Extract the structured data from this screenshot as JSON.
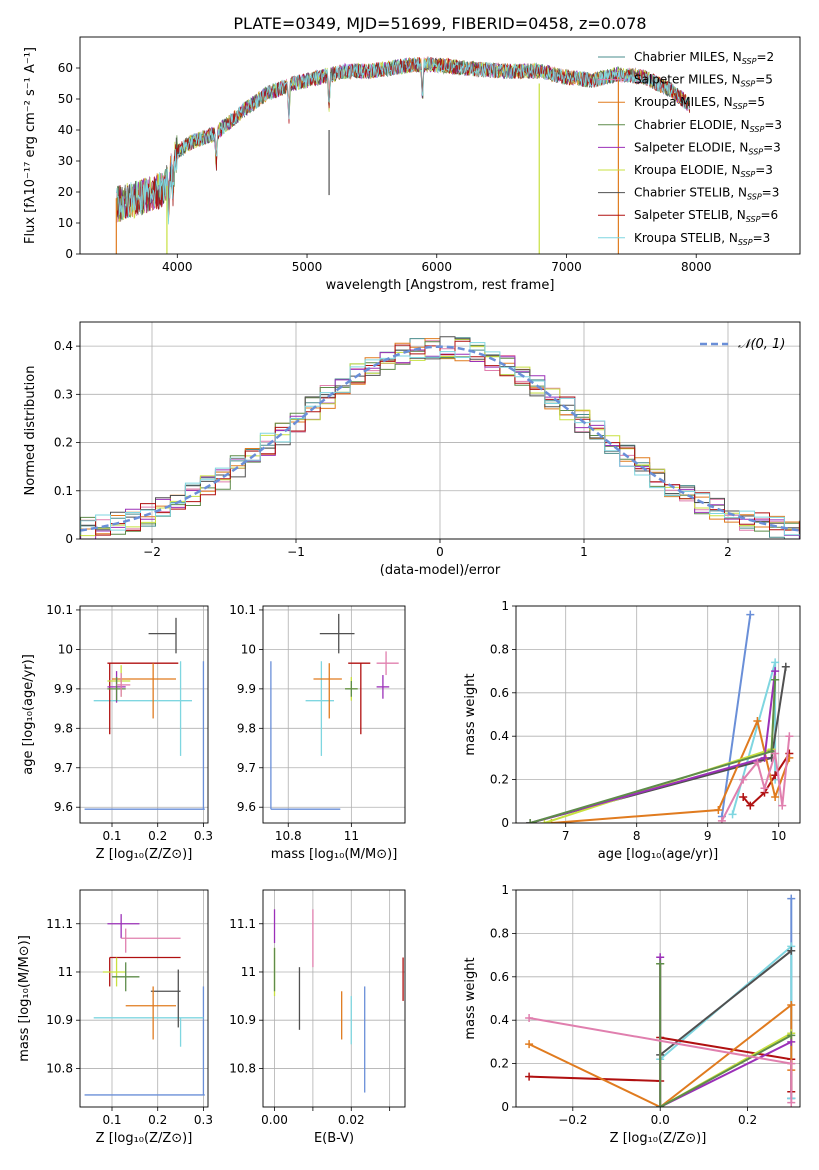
{
  "figure_title": "PLATE=0349, MJD=51699, FIBERID=0458, z=0.078",
  "legend_models": [
    {
      "label": "Chabrier MILES, N",
      "sub": "SSP",
      "tail": "=2",
      "color": "#4a8c8c"
    },
    {
      "label": "Salpeter MILES, N",
      "sub": "SSP",
      "tail": "=5",
      "color": "#e07fae"
    },
    {
      "label": "Kroupa MILES, N",
      "sub": "SSP",
      "tail": "=5",
      "color": "#e07b1f"
    },
    {
      "label": "Chabrier ELODIE, N",
      "sub": "SSP",
      "tail": "=3",
      "color": "#5e8c4a"
    },
    {
      "label": "Salpeter ELODIE, N",
      "sub": "SSP",
      "tail": "=3",
      "color": "#9b30b8"
    },
    {
      "label": "Kroupa ELODIE, N",
      "sub": "SSP",
      "tail": "=3",
      "color": "#c8e040"
    },
    {
      "label": "Chabrier STELIB, N",
      "sub": "SSP",
      "tail": "=3",
      "color": "#505050"
    },
    {
      "label": "Salpeter STELIB, N",
      "sub": "SSP",
      "tail": "=6",
      "color": "#b01010"
    },
    {
      "label": "Kroupa STELIB, N",
      "sub": "SSP",
      "tail": "=3",
      "color": "#7fd6e0"
    }
  ],
  "chart_data": [
    {
      "id": "spectrum",
      "type": "line",
      "xlabel": "wavelength [Angstrom, rest frame]",
      "ylabel": "Flux [fλ10⁻¹⁷ erg cm⁻² s⁻¹ A⁻¹]",
      "xlim": [
        3250,
        8800
      ],
      "ylim": [
        0,
        70
      ],
      "xticks": [
        4000,
        5000,
        6000,
        7000,
        8000
      ],
      "yticks": [
        0,
        10,
        20,
        30,
        40,
        50,
        60
      ],
      "grid": false,
      "continuum_x": [
        3530,
        3700,
        3900,
        4000,
        4100,
        4300,
        4500,
        4700,
        4900,
        5100,
        5300,
        5500,
        5800,
        6000,
        6200,
        6500,
        6800,
        7000,
        7200,
        7400,
        7600,
        7800,
        7950
      ],
      "continuum_y": [
        16,
        18,
        21,
        33,
        36,
        39,
        46,
        52,
        55,
        57,
        59,
        59,
        61,
        61,
        60,
        59,
        59,
        57,
        56,
        58,
        57,
        53,
        48
      ]
    },
    {
      "id": "residuals",
      "type": "histogram",
      "xlabel": "(data-model)/error",
      "ylabel": "Normed distribution",
      "xlim": [
        -2.5,
        2.5
      ],
      "ylim": [
        0,
        0.45
      ],
      "xticks": [
        -2,
        -1,
        0,
        1,
        2
      ],
      "yticks": [
        0.0,
        0.1,
        0.2,
        0.3,
        0.4
      ],
      "grid": true,
      "reference_label": "𝒩(0, 1)",
      "reference_color": "#6a8fd8"
    },
    {
      "id": "age_vs_Z",
      "type": "errorbar",
      "xlabel": "Z [log₁₀(Z/Z⊙)]",
      "ylabel": "age  [log₁₀(age/yr)]",
      "xlim": [
        0.03,
        0.31
      ],
      "ylim": [
        9.56,
        10.11
      ],
      "xticks": [
        0.1,
        0.2,
        0.3
      ],
      "yticks": [
        9.6,
        9.7,
        9.8,
        9.9,
        10.0,
        10.1
      ],
      "grid": true,
      "points": [
        {
          "color": "#6a8fd8",
          "x": 0.3,
          "xerr": [
            0.26,
            0.003
          ],
          "y": 9.595,
          "yerr": [
            0.0,
            0.375
          ]
        },
        {
          "color": "#7fd6e0",
          "x": 0.25,
          "xerr": [
            0.19,
            0.025
          ],
          "y": 9.87,
          "yerr": [
            0.14,
            0.1
          ]
        },
        {
          "color": "#505050",
          "x": 0.24,
          "xerr": [
            0.06,
            0.0
          ],
          "y": 10.04,
          "yerr": [
            0.05,
            0.04
          ]
        },
        {
          "color": "#b01010",
          "x": 0.095,
          "xerr": [
            0.005,
            0.15
          ],
          "y": 9.965,
          "yerr": [
            0.18,
            0.0
          ]
        },
        {
          "color": "#e07b1f",
          "x": 0.19,
          "xerr": [
            0.09,
            0.05
          ],
          "y": 9.925,
          "yerr": [
            0.1,
            0.04
          ]
        },
        {
          "color": "#c8e040",
          "x": 0.12,
          "xerr": [
            0.03,
            0.02
          ],
          "y": 9.92,
          "yerr": [
            0.04,
            0.04
          ]
        },
        {
          "color": "#9b30b8",
          "x": 0.11,
          "xerr": [
            0.02,
            0.02
          ],
          "y": 9.905,
          "yerr": [
            0.04,
            0.04
          ]
        },
        {
          "color": "#5e8c4a",
          "x": 0.11,
          "xerr": [
            0.02,
            0.02
          ],
          "y": 9.9,
          "yerr": [
            0.03,
            0.03
          ]
        },
        {
          "color": "#e07fae",
          "x": 0.12,
          "xerr": [
            0.01,
            0.02
          ],
          "y": 9.91,
          "yerr": [
            0.03,
            0.03
          ]
        }
      ]
    },
    {
      "id": "age_vs_mass",
      "type": "errorbar",
      "xlabel": "mass [log₁₀(M/M⊙)]",
      "ylabel": "",
      "xlim": [
        10.72,
        11.17
      ],
      "ylim": [
        9.56,
        10.11
      ],
      "xticks": [
        10.8,
        11.0
      ],
      "yticks": [
        9.6,
        9.7,
        9.8,
        9.9,
        10.0,
        10.1
      ],
      "grid": true,
      "points": [
        {
          "color": "#6a8fd8",
          "x": 10.745,
          "xerr": [
            0.0,
            0.22
          ],
          "y": 9.595,
          "yerr": [
            0.0,
            0.375
          ]
        },
        {
          "color": "#7fd6e0",
          "x": 10.905,
          "xerr": [
            0.05,
            0.04
          ],
          "y": 9.87,
          "yerr": [
            0.14,
            0.1
          ]
        },
        {
          "color": "#505050",
          "x": 10.96,
          "xerr": [
            0.06,
            0.05
          ],
          "y": 10.04,
          "yerr": [
            0.05,
            0.05
          ]
        },
        {
          "color": "#b01010",
          "x": 11.03,
          "xerr": [
            0.04,
            0.03
          ],
          "y": 9.965,
          "yerr": [
            0.18,
            0.0
          ]
        },
        {
          "color": "#e07b1f",
          "x": 10.93,
          "xerr": [
            0.05,
            0.04
          ],
          "y": 9.925,
          "yerr": [
            0.1,
            0.04
          ]
        },
        {
          "color": "#c8e040",
          "x": 11.0,
          "xerr": [
            0.02,
            0.02
          ],
          "y": 9.9,
          "yerr": [
            0.03,
            0.03
          ]
        },
        {
          "color": "#9b30b8",
          "x": 11.1,
          "xerr": [
            0.02,
            0.02
          ],
          "y": 9.905,
          "yerr": [
            0.03,
            0.03
          ]
        },
        {
          "color": "#5e8c4a",
          "x": 11.0,
          "xerr": [
            0.02,
            0.02
          ],
          "y": 9.9,
          "yerr": [
            0.02,
            0.02
          ]
        },
        {
          "color": "#e07fae",
          "x": 11.11,
          "xerr": [
            0.03,
            0.04
          ],
          "y": 9.965,
          "yerr": [
            0.03,
            0.03
          ]
        }
      ]
    },
    {
      "id": "weight_vs_age",
      "type": "line",
      "xlabel": "age  [log₁₀(age/yr)]",
      "ylabel": "mass weight",
      "xlim": [
        6.3,
        10.3
      ],
      "ylim": [
        0.0,
        1.0
      ],
      "xticks": [
        7,
        8,
        9,
        10
      ],
      "yticks": [
        0.0,
        0.2,
        0.4,
        0.6,
        0.8,
        1.0
      ],
      "grid": true,
      "series": [
        {
          "color": "#6a8fd8",
          "x": [
            9.2,
            9.6
          ],
          "y": [
            0.03,
            0.96
          ]
        },
        {
          "color": "#7fd6e0",
          "x": [
            9.35,
            9.95,
            9.95
          ],
          "y": [
            0.04,
            0.74,
            0.2
          ]
        },
        {
          "color": "#505050",
          "x": [
            6.5,
            9.9,
            10.1
          ],
          "y": [
            0.0,
            0.3,
            0.72
          ]
        },
        {
          "color": "#b01010",
          "x": [
            9.5,
            9.6,
            9.8,
            9.95,
            10.15
          ],
          "y": [
            0.12,
            0.08,
            0.14,
            0.22,
            0.32
          ]
        },
        {
          "color": "#e07b1f",
          "x": [
            6.8,
            9.15,
            9.7,
            9.95,
            10.15
          ],
          "y": [
            0.0,
            0.06,
            0.47,
            0.12,
            0.3
          ]
        },
        {
          "color": "#c8e040",
          "x": [
            6.7,
            9.9,
            9.95
          ],
          "y": [
            0.0,
            0.34,
            0.66
          ]
        },
        {
          "color": "#9b30b8",
          "x": [
            6.5,
            9.8,
            9.95
          ],
          "y": [
            0.0,
            0.3,
            0.7
          ]
        },
        {
          "color": "#5e8c4a",
          "x": [
            6.5,
            9.9,
            9.95
          ],
          "y": [
            0.0,
            0.33,
            0.66
          ]
        },
        {
          "color": "#e07fae",
          "x": [
            9.2,
            9.5,
            9.7,
            9.8,
            9.95,
            10.05,
            10.15
          ],
          "y": [
            0.01,
            0.2,
            0.28,
            0.16,
            0.32,
            0.08,
            0.4
          ]
        }
      ]
    },
    {
      "id": "mass_vs_Z",
      "type": "errorbar",
      "xlabel": "Z [log₁₀(Z/Z⊙)]",
      "ylabel": "mass [log₁₀(M/M⊙)]",
      "xlim": [
        0.03,
        0.31
      ],
      "ylim": [
        10.72,
        11.17
      ],
      "xticks": [
        0.1,
        0.2,
        0.3
      ],
      "yticks": [
        10.8,
        10.9,
        11.0,
        11.1
      ],
      "grid": true,
      "points": [
        {
          "color": "#6a8fd8",
          "x": 0.3,
          "xerr": [
            0.26,
            0.003
          ],
          "y": 10.745,
          "yerr": [
            0.0,
            0.225
          ]
        },
        {
          "color": "#7fd6e0",
          "x": 0.25,
          "xerr": [
            0.19,
            0.05
          ],
          "y": 10.905,
          "yerr": [
            0.06,
            0.0
          ]
        },
        {
          "color": "#505050",
          "x": 0.245,
          "xerr": [
            0.06,
            0.005
          ],
          "y": 10.96,
          "yerr": [
            0.075,
            0.045
          ]
        },
        {
          "color": "#b01010",
          "x": 0.095,
          "xerr": [
            0.0,
            0.155
          ],
          "y": 11.03,
          "yerr": [
            0.06,
            0.0
          ]
        },
        {
          "color": "#e07b1f",
          "x": 0.19,
          "xerr": [
            0.06,
            0.05
          ],
          "y": 10.93,
          "yerr": [
            0.07,
            0.04
          ]
        },
        {
          "color": "#c8e040",
          "x": 0.11,
          "xerr": [
            0.03,
            0.02
          ],
          "y": 11.0,
          "yerr": [
            0.03,
            0.03
          ]
        },
        {
          "color": "#9b30b8",
          "x": 0.12,
          "xerr": [
            0.03,
            0.04
          ],
          "y": 11.1,
          "yerr": [
            0.03,
            0.02
          ]
        },
        {
          "color": "#5e8c4a",
          "x": 0.13,
          "xerr": [
            0.03,
            0.03
          ],
          "y": 10.99,
          "yerr": [
            0.03,
            0.03
          ]
        },
        {
          "color": "#e07fae",
          "x": 0.13,
          "xerr": [
            0.01,
            0.12
          ],
          "y": 11.07,
          "yerr": [
            0.03,
            0.02
          ]
        }
      ]
    },
    {
      "id": "mass_vs_ebv",
      "type": "errorbar",
      "xlabel": "E(B-V)",
      "ylabel": "",
      "xlim": [
        -0.003,
        0.034
      ],
      "ylim": [
        10.72,
        11.17
      ],
      "xticks": [
        0.0,
        0.01,
        0.02,
        0.03
      ],
      "xticklabels": [
        "0.00",
        "",
        "0.02",
        ""
      ],
      "yticks": [
        10.8,
        10.9,
        11.0,
        11.1
      ],
      "grid": true,
      "points": [
        {
          "color": "#9b30b8",
          "x": 0.0,
          "y": 11.1,
          "yerr": [
            0.04,
            0.03
          ]
        },
        {
          "color": "#c8e040",
          "x": 0.0,
          "y": 11.0,
          "yerr": [
            0.05,
            0.05
          ]
        },
        {
          "color": "#5e8c4a",
          "x": 0.0,
          "y": 10.99,
          "yerr": [
            0.03,
            0.06
          ]
        },
        {
          "color": "#505050",
          "x": 0.0065,
          "y": 10.96,
          "yerr": [
            0.08,
            0.05
          ]
        },
        {
          "color": "#e07fae",
          "x": 0.01,
          "y": 11.07,
          "yerr": [
            0.06,
            0.06
          ]
        },
        {
          "color": "#e07b1f",
          "x": 0.0175,
          "y": 10.93,
          "yerr": [
            0.07,
            0.03
          ]
        },
        {
          "color": "#7fd6e0",
          "x": 0.02,
          "y": 10.9,
          "yerr": [
            0.05,
            0.05
          ]
        },
        {
          "color": "#6a8fd8",
          "x": 0.0235,
          "y": 10.86,
          "yerr": [
            0.11,
            0.11
          ]
        },
        {
          "color": "#b01010",
          "x": 0.0335,
          "y": 10.99,
          "yerr": [
            0.05,
            0.04
          ]
        }
      ]
    },
    {
      "id": "weight_vs_Z",
      "type": "line",
      "xlabel": "Z [log₁₀(Z/Z⊙)]",
      "ylabel": "mass weight",
      "xlim": [
        -0.33,
        0.32
      ],
      "ylim": [
        0.0,
        1.0
      ],
      "xticks": [
        -0.2,
        0.0,
        0.2
      ],
      "xticklabels": [
        "−0.2",
        "0.0",
        "0.2"
      ],
      "yticks": [
        0.0,
        0.2,
        0.4,
        0.6,
        0.8,
        1.0
      ],
      "grid": true,
      "series": [
        {
          "color": "#6a8fd8",
          "x": [
            0.3,
            0.3,
            0.3
          ],
          "y": [
            0.04,
            0.96,
            0.04
          ]
        },
        {
          "color": "#7fd6e0",
          "x": [
            0.0,
            0.3,
            0.3
          ],
          "y": [
            0.22,
            0.74,
            0.04
          ]
        },
        {
          "color": "#505050",
          "x": [
            0.0,
            0.3
          ],
          "y": [
            0.24,
            0.72
          ]
        },
        {
          "color": "#b01010",
          "x": [
            -0.3,
            0.0,
            0.0,
            0.3,
            0.3
          ],
          "y": [
            0.14,
            0.12,
            0.32,
            0.22,
            0.07
          ]
        },
        {
          "color": "#e07b1f",
          "x": [
            -0.3,
            0.0,
            0.3,
            0.3
          ],
          "y": [
            0.29,
            0.0,
            0.47,
            0.17
          ]
        },
        {
          "color": "#c8e040",
          "x": [
            0.0,
            0.0,
            0.3
          ],
          "y": [
            0.66,
            0.0,
            0.34
          ]
        },
        {
          "color": "#9b30b8",
          "x": [
            0.0,
            0.0,
            0.3
          ],
          "y": [
            0.69,
            0.0,
            0.3
          ]
        },
        {
          "color": "#5e8c4a",
          "x": [
            0.0,
            0.0,
            0.3
          ],
          "y": [
            0.66,
            0.0,
            0.33
          ]
        },
        {
          "color": "#e07fae",
          "x": [
            -0.3,
            0.3,
            0.3
          ],
          "y": [
            0.41,
            0.2,
            0.02
          ]
        }
      ]
    }
  ]
}
